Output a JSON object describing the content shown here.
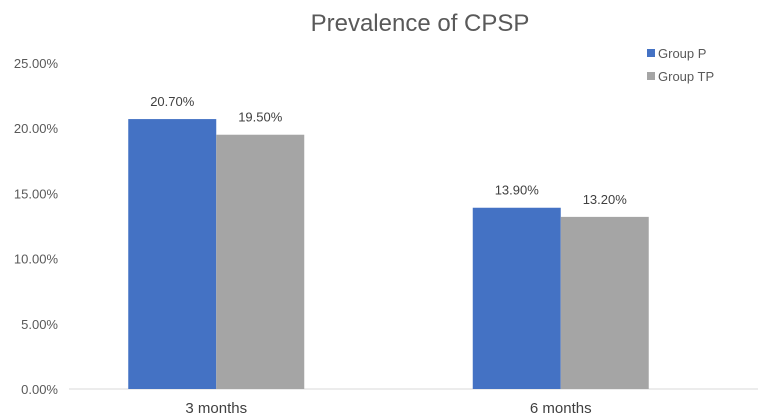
{
  "chart_data": {
    "type": "bar",
    "title": "Prevalence of CPSP",
    "xlabel": "",
    "ylabel": "",
    "categories": [
      "3 months",
      "6 months"
    ],
    "series": [
      {
        "name": "Group P",
        "color": "#4472C4",
        "values": [
          20.7,
          13.9
        ],
        "labels": [
          "20.70%",
          "13.90%"
        ]
      },
      {
        "name": "Group TP",
        "color": "#A5A5A5",
        "values": [
          19.5,
          13.2
        ],
        "labels": [
          "19.50%",
          "13.20%"
        ]
      }
    ],
    "ylim": [
      0,
      25
    ],
    "y_ticks": [
      "0.00%",
      "5.00%",
      "10.00%",
      "15.00%",
      "20.00%",
      "25.00%"
    ],
    "grid": false,
    "legend_position": "top-right"
  }
}
